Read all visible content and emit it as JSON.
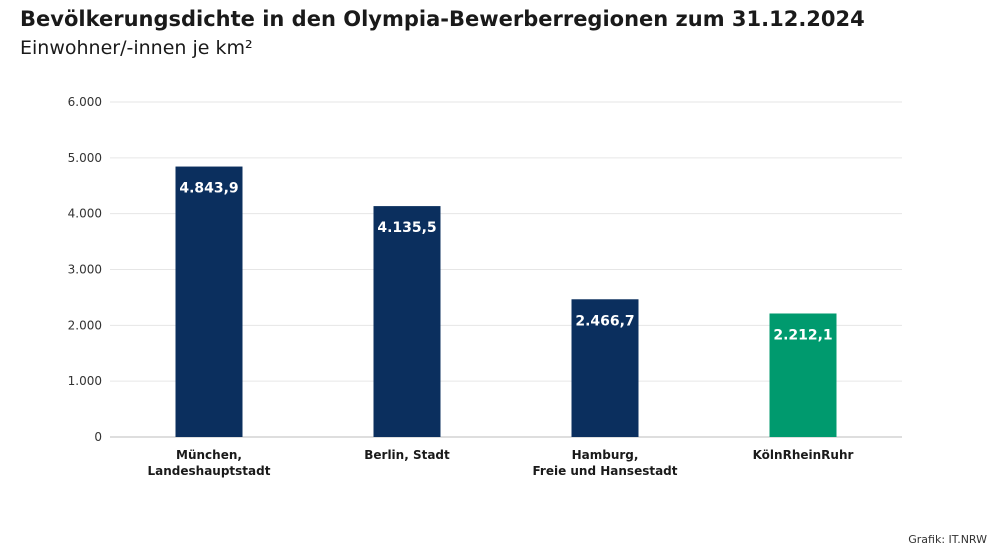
{
  "header": {
    "title": "Bevölkerungsdichte in den Olympia-Bewerberregionen zum 31.12.2024",
    "subtitle": "Einwohner/-innen je km²"
  },
  "footer": {
    "credit": "Grafik: IT.NRW"
  },
  "colors": {
    "primary": "#0b2f5e",
    "highlight": "#009a6e",
    "grid": "#e6e6e6"
  },
  "chart_data": {
    "type": "bar",
    "title": "Bevölkerungsdichte in den Olympia-Bewerberregionen zum 31.12.2024",
    "subtitle": "Einwohner/-innen je km²",
    "categories": [
      [
        "München,",
        "Landeshauptstadt"
      ],
      [
        "Berlin, Stadt"
      ],
      [
        "Hamburg,",
        "Freie und Hansestadt"
      ],
      [
        "KölnRheinRuhr"
      ]
    ],
    "values": [
      4843.9,
      4135.5,
      2466.7,
      2212.1
    ],
    "value_labels": [
      "4.843,9",
      "4.135,5",
      "2.466,7",
      "2.212,1"
    ],
    "highlight_index": 3,
    "ylim": [
      0,
      6000
    ],
    "yticks": [
      0,
      1000,
      2000,
      3000,
      4000,
      5000,
      6000
    ],
    "ytick_labels": [
      "0",
      "1.000",
      "2.000",
      "3.000",
      "4.000",
      "5.000",
      "6.000"
    ],
    "grid": true
  }
}
